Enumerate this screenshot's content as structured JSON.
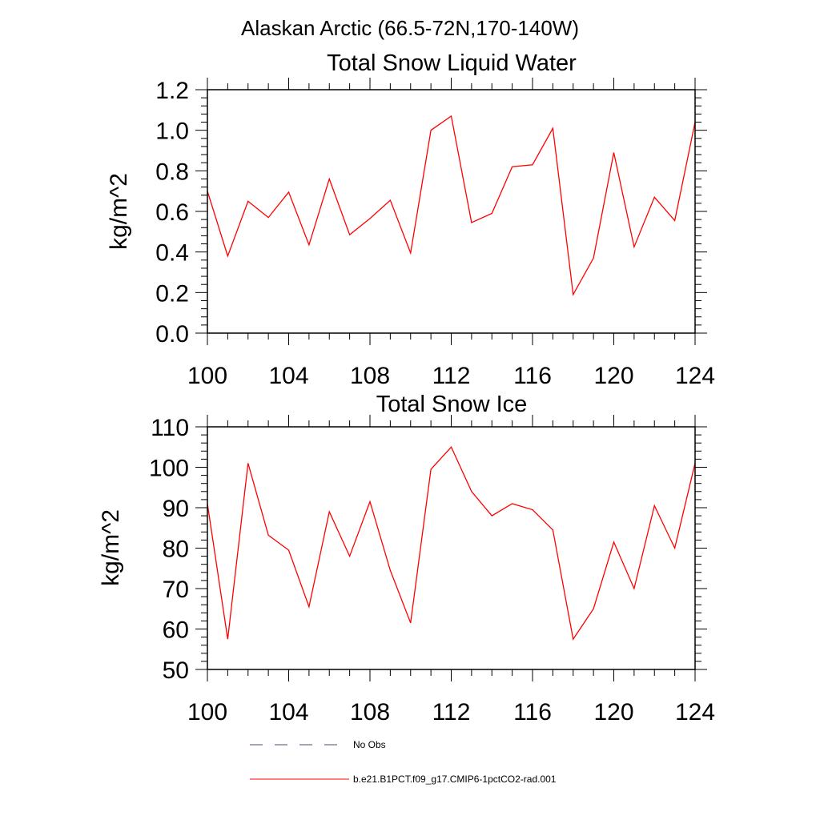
{
  "figure_title": "Alaskan Arctic (66.5-72N,170-140W)",
  "series_color": "#ff0000",
  "chart_data": [
    {
      "type": "line",
      "title": "Total Snow Liquid Water",
      "xlabel": "",
      "ylabel": "kg/m^2",
      "xlim": [
        100,
        124
      ],
      "ylim": [
        0,
        1.2
      ],
      "xticks": [
        "100",
        "104",
        "108",
        "112",
        "116",
        "120",
        "124"
      ],
      "yticks": [
        "0.0",
        "0.2",
        "0.4",
        "0.6",
        "0.8",
        "1.0",
        "1.2"
      ],
      "x": [
        100,
        101,
        102,
        103,
        104,
        105,
        106,
        107,
        108,
        109,
        110,
        111,
        112,
        113,
        114,
        115,
        116,
        117,
        118,
        119,
        120,
        121,
        122,
        123,
        124
      ],
      "series": [
        {
          "name": "b.e21.B1PCT.f09_g17.CMIP6-1pctCO2-rad.001",
          "values": [
            0.7,
            0.38,
            0.65,
            0.57,
            0.695,
            0.435,
            0.76,
            0.485,
            0.565,
            0.655,
            0.395,
            1.0,
            1.07,
            0.545,
            0.59,
            0.82,
            0.83,
            1.01,
            0.19,
            0.37,
            0.89,
            0.425,
            0.67,
            0.555,
            1.04
          ]
        }
      ]
    },
    {
      "type": "line",
      "title": "Total Snow Ice",
      "xlabel": "",
      "ylabel": "kg/m^2",
      "xlim": [
        100,
        124
      ],
      "ylim": [
        50,
        110
      ],
      "xticks": [
        "100",
        "104",
        "108",
        "112",
        "116",
        "120",
        "124"
      ],
      "yticks": [
        "50",
        "60",
        "70",
        "80",
        "90",
        "100",
        "110"
      ],
      "x": [
        100,
        101,
        102,
        103,
        104,
        105,
        106,
        107,
        108,
        109,
        110,
        111,
        112,
        113,
        114,
        115,
        116,
        117,
        118,
        119,
        120,
        121,
        122,
        123,
        124
      ],
      "series": [
        {
          "name": "b.e21.B1PCT.f09_g17.CMIP6-1pctCO2-rad.001",
          "values": [
            91,
            57.5,
            101,
            83.2,
            79.5,
            65.5,
            89,
            78,
            91.5,
            74.5,
            61.5,
            99.5,
            105,
            94,
            88,
            91,
            89.5,
            84.5,
            57.5,
            65,
            81.5,
            70,
            90.5,
            80,
            101
          ]
        }
      ]
    }
  ],
  "legend": {
    "placement": "bottom",
    "items": [
      {
        "label": "No Obs",
        "style": "dashed",
        "color": "#4a4a6a"
      },
      {
        "label": "b.e21.B1PCT.f09_g17.CMIP6-1pctCO2-rad.001",
        "style": "solid",
        "color": "#ff0000"
      }
    ]
  }
}
